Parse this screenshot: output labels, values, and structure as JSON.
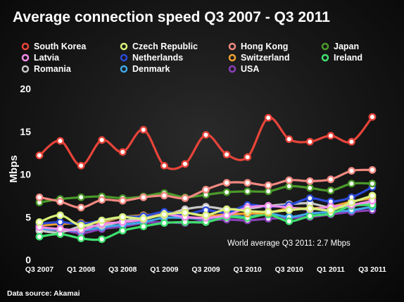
{
  "chart_data": {
    "type": "line",
    "title": "Average connection speed Q3 2007 - Q3 2011",
    "xlabel": "",
    "ylabel": "Mbps",
    "ylim": [
      0,
      20
    ],
    "yticks": [
      0,
      5,
      10,
      15,
      20
    ],
    "grid": false,
    "legend_position": "top",
    "x": [
      "Q3 2007",
      "Q4 2007",
      "Q1 2008",
      "Q2 2008",
      "Q3 2008",
      "Q4 2008",
      "Q1 2009",
      "Q2 2009",
      "Q3 2009",
      "Q4 2009",
      "Q1 2010",
      "Q2 2010",
      "Q3 2010",
      "Q4 2010",
      "Q1 2011",
      "Q2 2011",
      "Q3 2011"
    ],
    "xtick_labels": [
      "Q3 2007",
      "Q1 2008",
      "Q3 2008",
      "Q1 2009",
      "Q3 2009",
      "Q1 2010",
      "Q3 2010",
      "Q1 2011",
      "Q3 2011"
    ],
    "series": [
      {
        "name": "South Korea",
        "color": "#e8443a",
        "values": [
          12.2,
          13.9,
          11.0,
          14.0,
          12.6,
          15.2,
          11.0,
          11.2,
          14.6,
          12.3,
          12.0,
          16.6,
          14.1,
          13.8,
          14.5,
          13.8,
          16.7
        ]
      },
      {
        "name": "Czech Republic",
        "color": "#d8f07a",
        "values": [
          4.4,
          5.2,
          4.0,
          4.6,
          5.0,
          4.8,
          5.3,
          5.5,
          5.2,
          5.9,
          5.7,
          5.6,
          5.8,
          6.0,
          5.8,
          6.7,
          7.5
        ]
      },
      {
        "name": "Hong Kong",
        "color": "#f08880",
        "values": [
          7.3,
          6.8,
          6.1,
          7.0,
          6.9,
          7.3,
          7.5,
          7.2,
          8.2,
          9.0,
          9.0,
          8.7,
          9.3,
          9.2,
          9.4,
          10.4,
          10.5
        ]
      },
      {
        "name": "Japan",
        "color": "#4a9a2a",
        "values": [
          6.7,
          7.1,
          7.3,
          7.4,
          7.2,
          7.4,
          7.8,
          7.3,
          7.6,
          7.9,
          8.0,
          8.0,
          8.6,
          8.4,
          8.1,
          8.9,
          8.9
        ]
      },
      {
        "name": "Latvia",
        "color": "#f08ce8",
        "values": [
          3.8,
          3.6,
          3.5,
          4.2,
          4.4,
          4.7,
          5.3,
          5.0,
          4.9,
          5.2,
          6.1,
          6.3,
          6.1,
          5.9,
          6.2,
          6.4,
          6.9
        ]
      },
      {
        "name": "Netherlands",
        "color": "#2a4ad8",
        "values": [
          4.2,
          4.4,
          4.2,
          4.6,
          5.0,
          5.1,
          5.6,
          5.3,
          5.8,
          5.5,
          6.4,
          6.2,
          6.4,
          7.2,
          6.8,
          7.3,
          8.5
        ]
      },
      {
        "name": "Switzerland",
        "color": "#f0a030",
        "values": [
          4.0,
          4.2,
          4.3,
          4.4,
          5.0,
          5.2,
          5.4,
          5.5,
          5.1,
          5.3,
          5.4,
          5.5,
          6.0,
          6.0,
          6.2,
          6.8,
          7.2
        ]
      },
      {
        "name": "Ireland",
        "color": "#40e070",
        "values": [
          2.7,
          3.0,
          2.5,
          2.4,
          3.4,
          3.9,
          4.3,
          4.4,
          4.4,
          5.0,
          4.9,
          5.3,
          4.5,
          5.1,
          5.4,
          6.3,
          6.4
        ]
      },
      {
        "name": "Romania",
        "color": "#c8c8c8",
        "values": [
          3.4,
          3.2,
          3.9,
          4.0,
          4.5,
          5.0,
          5.2,
          5.9,
          6.2,
          5.9,
          6.0,
          6.3,
          6.5,
          6.6,
          6.1,
          6.3,
          6.6
        ]
      },
      {
        "name": "Denmark",
        "color": "#40a8e8",
        "values": [
          3.6,
          3.5,
          3.4,
          3.8,
          4.1,
          4.4,
          4.9,
          4.9,
          4.8,
          5.2,
          5.0,
          5.4,
          5.0,
          5.4,
          5.6,
          5.8,
          6.2
        ]
      },
      {
        "name": "USA",
        "color": "#8a40b8",
        "values": [
          3.4,
          3.5,
          3.1,
          3.6,
          3.9,
          4.3,
          4.4,
          4.3,
          4.6,
          4.7,
          4.6,
          4.8,
          4.9,
          5.0,
          5.3,
          5.6,
          5.8
        ]
      }
    ],
    "annotations": [
      "World average Q3 2011: 2.7 Mbps"
    ],
    "source": "Data source: Akamai"
  }
}
